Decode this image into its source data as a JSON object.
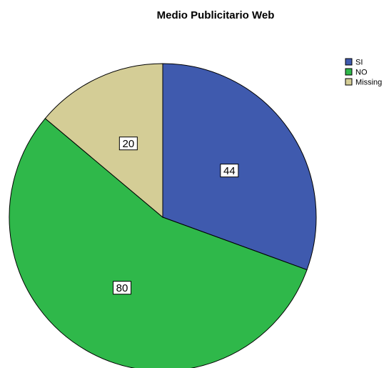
{
  "chart_data": {
    "type": "pie",
    "title": "Medio Publicitario Web",
    "labels": [
      "SI",
      "NO",
      "Missing"
    ],
    "values": [
      44,
      80,
      20
    ],
    "colors": [
      "#3f5aae",
      "#2fb84a",
      "#d4cd96"
    ],
    "data_labels": [
      "44",
      "80",
      "20"
    ],
    "legend_position": "top-right",
    "start_angle_deg": 0,
    "direction": "clockwise"
  }
}
